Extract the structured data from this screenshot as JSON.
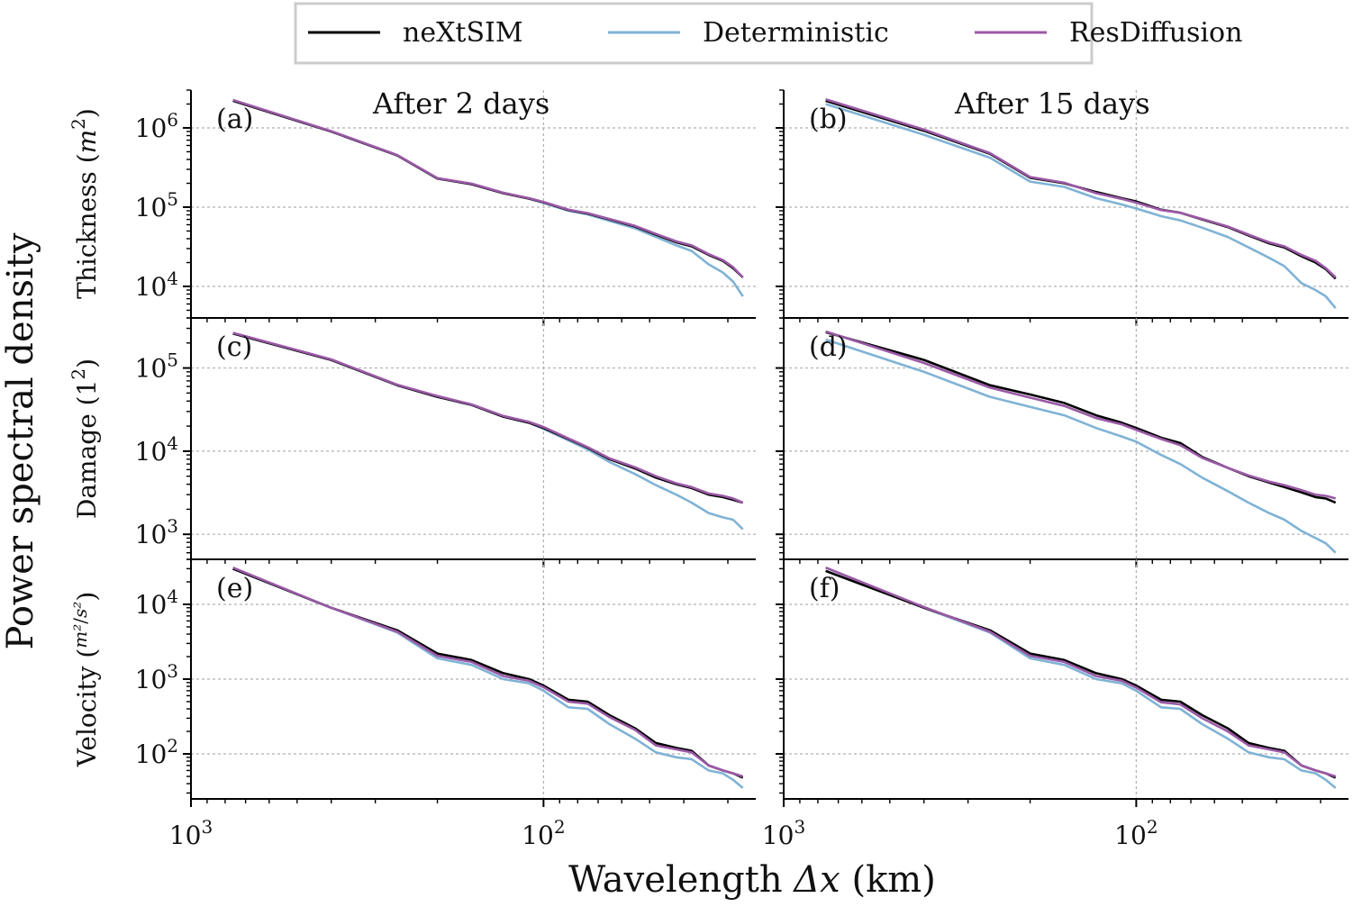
{
  "figure": {
    "ylabel": "Power spectral density",
    "xlabel_prefix": "Wavelength ",
    "xlabel_symbol": "Δx",
    "xlabel_suffix": " (km)",
    "xticklabels": [
      {
        "base": "10",
        "exp": "3",
        "value": 1000
      },
      {
        "base": "10",
        "exp": "2",
        "value": 100
      }
    ]
  },
  "legend": {
    "position": "top-center",
    "entries": [
      {
        "name": "neXtSIM",
        "color": "#000000"
      },
      {
        "name": "Deterministic",
        "color": "#7fb3d5"
      },
      {
        "name": "ResDiffusion",
        "color": "#9b59a6"
      }
    ]
  },
  "rows": [
    {
      "label": "Thickness",
      "unit_base": "m",
      "unit_exp": "2",
      "unit_style": "italic-pow"
    },
    {
      "label": "Damage",
      "unit_base": "1",
      "unit_exp": "2",
      "unit_style": "pow"
    },
    {
      "label": "Velocity",
      "unit_num": "m²",
      "unit_den": "s²",
      "unit_style": "frac"
    }
  ],
  "columns": [
    {
      "title": "After 2 days"
    },
    {
      "title": "After 15 days"
    }
  ],
  "chart_data": [
    {
      "type": "line",
      "panel": "(a)",
      "title": "After 2 days",
      "ylabel": "Thickness (m²)",
      "xscale": "log",
      "yscale": "log",
      "xlim": [
        1000,
        25
      ],
      "ylim": [
        4000,
        3000000
      ],
      "grid": true,
      "yticks": [
        {
          "base": "10",
          "exp": "6"
        },
        {
          "base": "10",
          "exp": "5"
        },
        {
          "base": "10",
          "exp": "4"
        }
      ],
      "ytick_values": [
        1000000,
        100000,
        10000
      ],
      "x": [
        760,
        400,
        260,
        200,
        160,
        130,
        110,
        100,
        85,
        75,
        65,
        55,
        48,
        42,
        38,
        34,
        31,
        29,
        27.2
      ],
      "series": [
        {
          "name": "neXtSIM",
          "values": [
            2200000,
            900000,
            450000,
            230000,
            195000,
            150000,
            128000,
            115000,
            92000,
            83000,
            70000,
            57000,
            45000,
            36000,
            32000,
            25000,
            21000,
            17000,
            13000
          ]
        },
        {
          "name": "Deterministic",
          "values": [
            2200000,
            900000,
            450000,
            230000,
            195000,
            150000,
            128000,
            113000,
            90000,
            81000,
            67000,
            54000,
            42000,
            33000,
            28000,
            19000,
            15000,
            11500,
            7500
          ]
        },
        {
          "name": "ResDiffusion",
          "values": [
            2250000,
            910000,
            455000,
            232000,
            198000,
            152000,
            130000,
            116000,
            93000,
            84000,
            71000,
            58000,
            46000,
            37000,
            33000,
            25500,
            21500,
            17500,
            13000
          ]
        }
      ]
    },
    {
      "type": "line",
      "panel": "(b)",
      "title": "After 15 days",
      "ylabel": "",
      "xscale": "log",
      "yscale": "log",
      "xlim": [
        1000,
        25
      ],
      "ylim": [
        4000,
        3000000
      ],
      "grid": true,
      "yticks": [],
      "ytick_values": [
        1000000,
        100000,
        10000
      ],
      "x": [
        760,
        400,
        260,
        200,
        160,
        130,
        110,
        100,
        85,
        75,
        65,
        55,
        48,
        42,
        38,
        34,
        31,
        29,
        27.2
      ],
      "series": [
        {
          "name": "neXtSIM",
          "values": [
            2200000,
            920000,
            470000,
            235000,
            200000,
            155000,
            130000,
            118000,
            93000,
            85000,
            70000,
            56000,
            44000,
            35000,
            31000,
            24000,
            20000,
            16500,
            12500
          ]
        },
        {
          "name": "Deterministic",
          "values": [
            2000000,
            820000,
            420000,
            210000,
            180000,
            130000,
            108000,
            96000,
            77000,
            68000,
            55000,
            42000,
            31000,
            23000,
            18000,
            11000,
            9000,
            7500,
            5300
          ]
        },
        {
          "name": "ResDiffusion",
          "values": [
            2300000,
            950000,
            480000,
            240000,
            203000,
            150000,
            127000,
            114000,
            92000,
            85000,
            71000,
            57000,
            45000,
            36000,
            32000,
            25000,
            21000,
            17000,
            13000
          ]
        }
      ]
    },
    {
      "type": "line",
      "panel": "(c)",
      "title": "",
      "ylabel": "Damage (1²)",
      "xscale": "log",
      "yscale": "log",
      "xlim": [
        1000,
        25
      ],
      "ylim": [
        500,
        400000
      ],
      "grid": true,
      "yticks": [
        {
          "base": "10",
          "exp": "5"
        },
        {
          "base": "10",
          "exp": "4"
        },
        {
          "base": "10",
          "exp": "3"
        }
      ],
      "ytick_values": [
        100000,
        10000,
        1000
      ],
      "x": [
        760,
        400,
        260,
        200,
        160,
        130,
        110,
        100,
        85,
        75,
        65,
        55,
        48,
        42,
        38,
        34,
        31,
        29,
        27.2
      ],
      "series": [
        {
          "name": "neXtSIM",
          "values": [
            260000,
            125000,
            62000,
            45000,
            36000,
            26000,
            22000,
            19000,
            14000,
            11000,
            8000,
            6200,
            4800,
            4000,
            3600,
            3000,
            2800,
            2600,
            2400
          ]
        },
        {
          "name": "Deterministic",
          "values": [
            260000,
            125000,
            62000,
            45000,
            36000,
            26000,
            22000,
            18500,
            13500,
            10500,
            7400,
            5300,
            3900,
            3000,
            2400,
            1800,
            1600,
            1500,
            1150
          ]
        },
        {
          "name": "ResDiffusion",
          "values": [
            265000,
            127000,
            63000,
            46000,
            36500,
            26500,
            22500,
            19500,
            14200,
            11200,
            8200,
            6400,
            5000,
            4100,
            3700,
            3100,
            2900,
            2700,
            2400
          ]
        }
      ]
    },
    {
      "type": "line",
      "panel": "(d)",
      "title": "",
      "ylabel": "",
      "xscale": "log",
      "yscale": "log",
      "xlim": [
        1000,
        25
      ],
      "ylim": [
        500,
        400000
      ],
      "grid": true,
      "yticks": [],
      "ytick_values": [
        100000,
        10000,
        1000
      ],
      "x": [
        760,
        400,
        260,
        200,
        160,
        130,
        110,
        100,
        85,
        75,
        65,
        55,
        48,
        42,
        38,
        34,
        31,
        29,
        27.2
      ],
      "series": [
        {
          "name": "neXtSIM",
          "values": [
            270000,
            125000,
            62000,
            48000,
            38000,
            27000,
            22000,
            19000,
            14500,
            12500,
            8500,
            6300,
            5000,
            4200,
            3700,
            3200,
            2800,
            2700,
            2400
          ]
        },
        {
          "name": "Deterministic",
          "values": [
            220000,
            90000,
            45000,
            34000,
            27000,
            19000,
            15000,
            13000,
            9000,
            7000,
            4800,
            3300,
            2400,
            1800,
            1500,
            1100,
            900,
            780,
            600
          ]
        },
        {
          "name": "ResDiffusion",
          "values": [
            275000,
            115000,
            58000,
            44000,
            35000,
            25000,
            21000,
            18000,
            14000,
            11800,
            8300,
            6300,
            5100,
            4300,
            3900,
            3400,
            3000,
            2900,
            2700
          ]
        }
      ]
    },
    {
      "type": "line",
      "panel": "(e)",
      "title": "",
      "ylabel": "Velocity (m²/s²)",
      "xscale": "log",
      "yscale": "log",
      "xlim": [
        1000,
        25
      ],
      "ylim": [
        25,
        40000
      ],
      "grid": true,
      "yticks": [
        {
          "base": "10",
          "exp": "4"
        },
        {
          "base": "10",
          "exp": "3"
        },
        {
          "base": "10",
          "exp": "2"
        }
      ],
      "ytick_values": [
        10000,
        1000,
        100
      ],
      "x": [
        760,
        400,
        260,
        200,
        160,
        130,
        110,
        100,
        85,
        75,
        65,
        55,
        48,
        42,
        38,
        34,
        31,
        29,
        27.2
      ],
      "series": [
        {
          "name": "neXtSIM",
          "values": [
            30000,
            9000,
            4500,
            2200,
            1800,
            1200,
            1000,
            820,
            530,
            500,
            330,
            220,
            140,
            120,
            110,
            70,
            60,
            55,
            48
          ]
        },
        {
          "name": "Deterministic",
          "values": [
            30000,
            9000,
            4200,
            1900,
            1550,
            1000,
            880,
            700,
            420,
            400,
            250,
            160,
            105,
            90,
            85,
            60,
            55,
            45,
            35
          ]
        },
        {
          "name": "ResDiffusion",
          "values": [
            31000,
            9000,
            4300,
            2050,
            1700,
            1100,
            950,
            780,
            500,
            470,
            310,
            210,
            130,
            115,
            105,
            70,
            60,
            55,
            50
          ]
        }
      ]
    },
    {
      "type": "line",
      "panel": "(f)",
      "title": "",
      "ylabel": "",
      "xscale": "log",
      "yscale": "log",
      "xlim": [
        1000,
        25
      ],
      "ylim": [
        25,
        40000
      ],
      "grid": true,
      "yticks": [],
      "ytick_values": [
        10000,
        1000,
        100
      ],
      "x": [
        760,
        400,
        260,
        200,
        160,
        130,
        110,
        100,
        85,
        75,
        65,
        55,
        48,
        42,
        38,
        34,
        31,
        29,
        27.2
      ],
      "series": [
        {
          "name": "neXtSIM",
          "values": [
            28000,
            9000,
            4500,
            2200,
            1800,
            1200,
            1000,
            820,
            530,
            500,
            330,
            220,
            140,
            120,
            110,
            70,
            60,
            55,
            48
          ]
        },
        {
          "name": "Deterministic",
          "values": [
            31000,
            9000,
            4200,
            1900,
            1550,
            1000,
            880,
            700,
            420,
            400,
            250,
            160,
            105,
            90,
            85,
            60,
            55,
            45,
            35
          ]
        },
        {
          "name": "ResDiffusion",
          "values": [
            31000,
            9200,
            4300,
            2050,
            1700,
            1100,
            950,
            770,
            490,
            460,
            300,
            200,
            130,
            115,
            105,
            70,
            60,
            55,
            50
          ]
        }
      ]
    }
  ]
}
